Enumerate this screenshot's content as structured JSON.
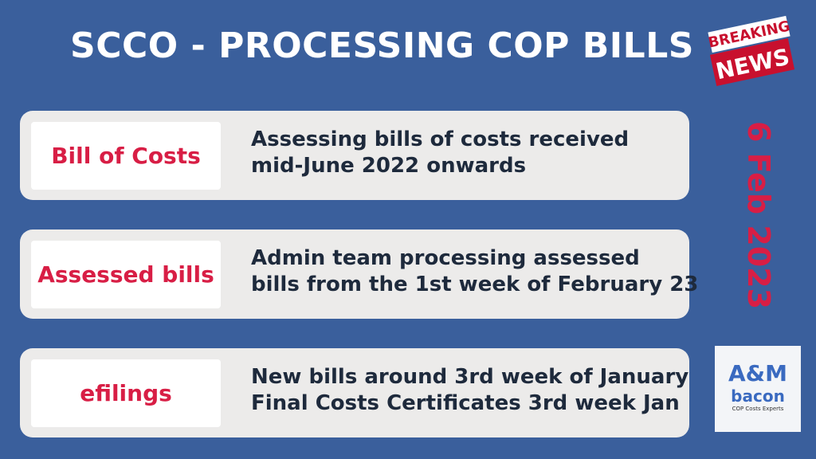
{
  "title": "SCCO - PROCESSING COP BILLS",
  "badge": {
    "line1": "BREAKING",
    "line2": "NEWS"
  },
  "date": "6 Feb 2023",
  "rows": [
    {
      "label": "Bill of Costs",
      "text": [
        "Assessing bills of costs received",
        "mid-June 2022 onwards"
      ]
    },
    {
      "label": "Assessed bills",
      "text": [
        "Admin team processing assessed",
        "bills from the 1st week of February 23"
      ]
    },
    {
      "label": "efilings",
      "text": [
        "New bills around 3rd week of January",
        "Final Costs Certificates 3rd week Jan"
      ]
    }
  ],
  "logo": {
    "mark": "A&M",
    "name": "bacon",
    "tagline": "COP Costs Experts"
  }
}
